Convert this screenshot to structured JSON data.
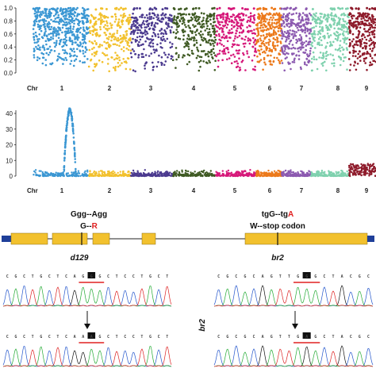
{
  "colors": [
    "#3b97d3",
    "#f2c12e",
    "#4b3a8f",
    "#3f5a23",
    "#d6197a",
    "#ec7a1c",
    "#8c5ab0",
    "#7fd1ae",
    "#8e1b2b"
  ],
  "panel_a": {
    "yticks": [
      "0.0",
      "0.2",
      "0.4",
      "0.6",
      "0.8",
      "1.0"
    ],
    "chr_label": "Chr",
    "chromosomes": [
      "1",
      "2",
      "3",
      "4",
      "5",
      "6",
      "7",
      "8",
      "9"
    ]
  },
  "panel_b": {
    "yticks": [
      "0",
      "10",
      "20",
      "30",
      "40"
    ],
    "chr_label": "Chr",
    "chromosomes": [
      "1",
      "2",
      "3",
      "4",
      "5",
      "6",
      "7",
      "8",
      "9"
    ]
  },
  "gene_model": {
    "d129": {
      "codon_change": "Ggg--Agg",
      "aa_change_prefix": "G--",
      "aa_change_red": "R",
      "name": "d129"
    },
    "br2": {
      "codon_change_prefix": "tgG--tg",
      "codon_change_red": "A",
      "aa_change": "W--stop codon",
      "name": "br2"
    }
  },
  "chromatograms": {
    "left_top_seq": "CGCTGCTCAGGGCTCCTGCT",
    "left_bottom_seq": "CGCTGCTCAAGGCTCCTGCT",
    "right_top_seq": "CGCGCAGTTGGGCTACGC",
    "right_bottom_seq": "CGCGCAGTTGAGCTACGC",
    "left_top_marker": "G",
    "left_bottom_marker": "A",
    "right_top_marker": "G",
    "right_bottom_marker": "A",
    "side_label": "br2"
  }
}
